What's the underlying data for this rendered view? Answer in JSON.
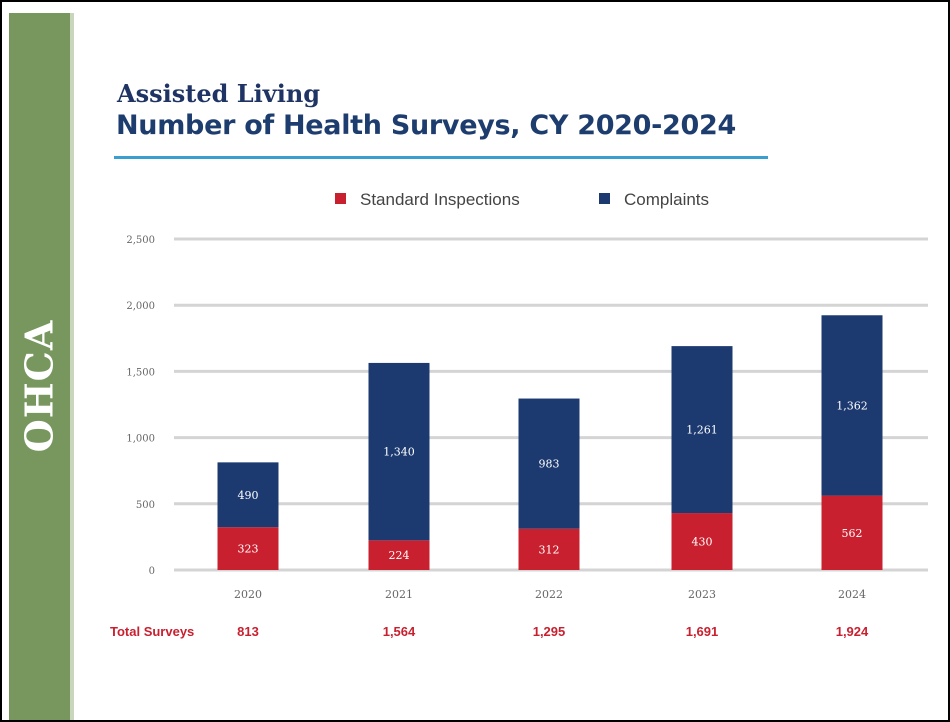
{
  "sidebar": {
    "label": "OHCA"
  },
  "header": {
    "subtitle": "Assisted Living",
    "title": "Number of Health Surveys, CY 2020-2024"
  },
  "colors": {
    "standard": "#c8202f",
    "complaints": "#1d3a70",
    "sidebar": "#77975f",
    "rule": "#3a9fd0",
    "totals": "#c8202f"
  },
  "chart_data": {
    "type": "bar",
    "stacked": true,
    "categories": [
      "2020",
      "2021",
      "2022",
      "2023",
      "2024"
    ],
    "series": [
      {
        "name": "Standard Inspections",
        "values": [
          323,
          224,
          312,
          430,
          562
        ],
        "labels": [
          "323",
          "224",
          "312",
          "430",
          "562"
        ]
      },
      {
        "name": "Complaints",
        "values": [
          490,
          1340,
          983,
          1261,
          1362
        ],
        "labels": [
          "490",
          "1,340",
          "983",
          "1,261",
          "1,362"
        ]
      }
    ],
    "ylim": [
      0,
      2500
    ],
    "yticks": [
      0,
      500,
      1000,
      1500,
      2000,
      2500
    ],
    "ytick_labels": [
      "0",
      "500",
      "1,000",
      "1,500",
      "2,000",
      "2,500"
    ],
    "grid": true,
    "legend": "top-center",
    "totals_label": "Total Surveys",
    "totals": [
      "813",
      "1,564",
      "1,295",
      "1,691",
      "1,924"
    ]
  }
}
